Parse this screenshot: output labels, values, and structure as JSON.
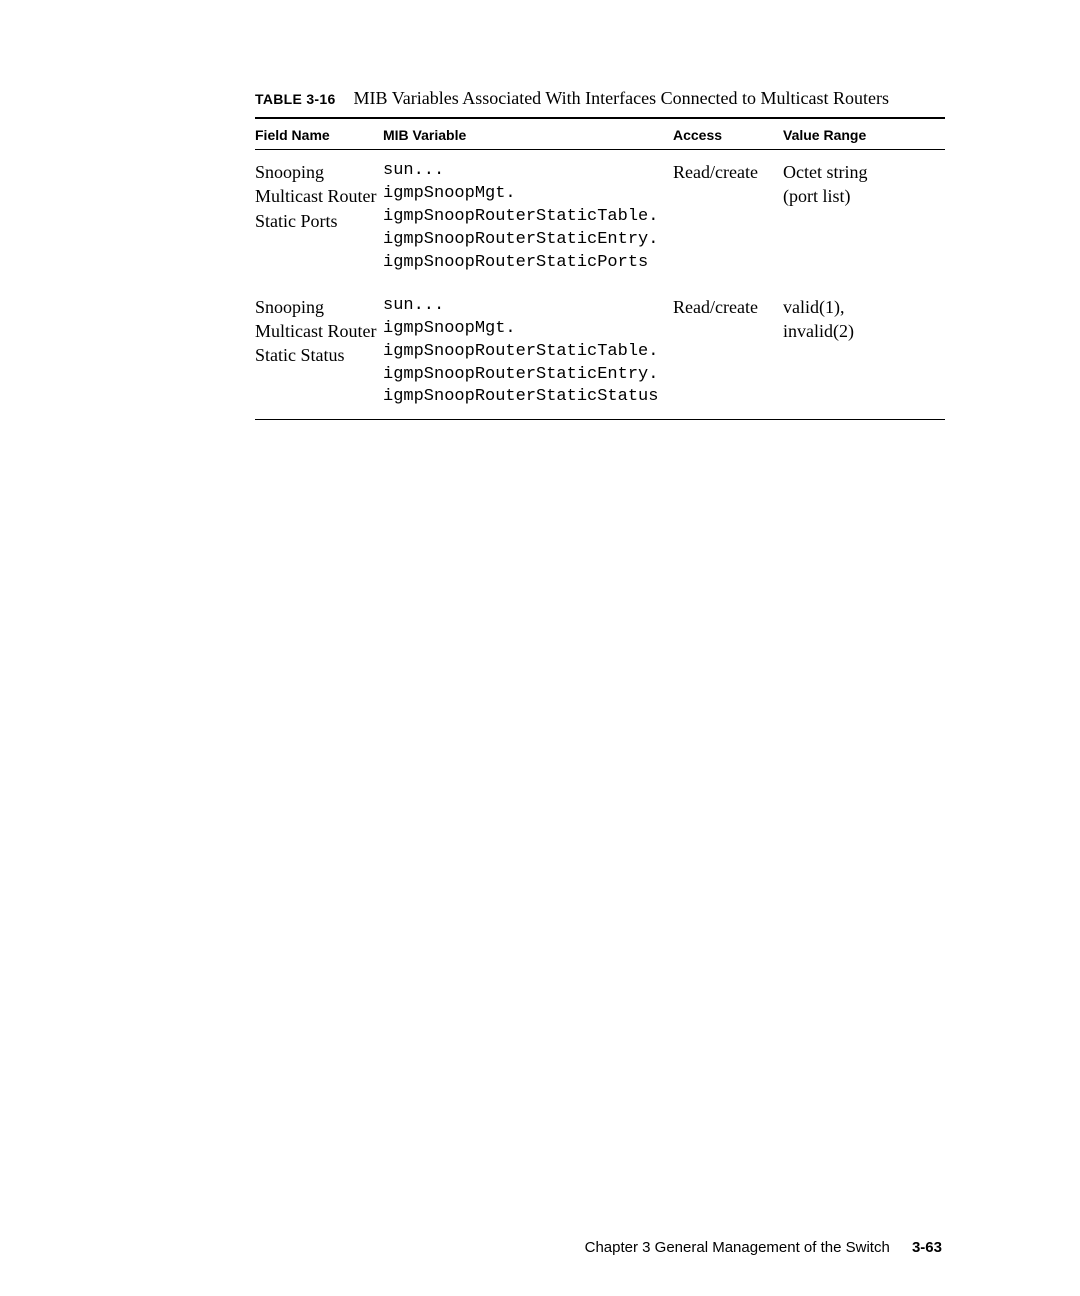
{
  "table": {
    "caption_label": "TABLE 3-16",
    "caption_text": "MIB Variables Associated With Interfaces Connected to Multicast Routers",
    "headers": {
      "field_name": "Field Name",
      "mib_variable": "MIB Variable",
      "access": "Access",
      "value_range": "Value Range"
    },
    "columns": {
      "widths": [
        "128px",
        "290px",
        "110px",
        "auto"
      ]
    },
    "rows": [
      {
        "field_name": "Snooping\nMulticast Router\nStatic Ports",
        "mib_variable": "sun...\nigmpSnoopMgt.\nigmpSnoopRouterStaticTable.\nigmpSnoopRouterStaticEntry.\nigmpSnoopRouterStaticPorts",
        "access": "Read/create",
        "value_range": "Octet string\n(port list)"
      },
      {
        "field_name": "Snooping\nMulticast Router\nStatic Status",
        "mib_variable": "sun...\nigmpSnoopMgt.\nigmpSnoopRouterStaticTable.\nigmpSnoopRouterStaticEntry.\nigmpSnoopRouterStaticStatus",
        "access": "Read/create",
        "value_range": "valid(1),\ninvalid(2)"
      }
    ]
  },
  "footer": {
    "chapter_text": "Chapter 3    General Management of the Switch",
    "page_number": "3-63"
  }
}
